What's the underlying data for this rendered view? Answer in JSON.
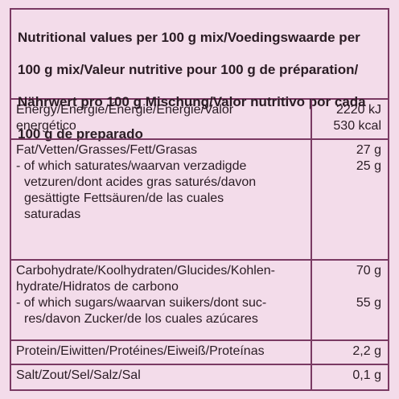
{
  "header": {
    "lines": [
      "Nutritional values per 100 g mix/Voedingswaarde per",
      "100 g mix/Valeur nutritive pour 100 g de préparation/",
      "Nährwert pro 100 g Mischung/Valor nutritivo por cada",
      "100 g de preparado"
    ]
  },
  "rows": {
    "energy": {
      "label": [
        "Energy/Energie/Énergie/Energie/Valor",
        "energético"
      ],
      "values": [
        "2220 kJ",
        "530 kcal"
      ]
    },
    "fat": {
      "label": [
        "Fat/Vetten/Grasses/Fett/Grasas"
      ],
      "value": "27 g",
      "sub_label": [
        "- of which saturates/waarvan verzadigde",
        "vetzuren/dont acides gras saturés/davon",
        "gesättigte Fettsäuren/de las cuales",
        "saturadas"
      ],
      "sub_value": "25 g"
    },
    "carbs": {
      "label": [
        "Carbohydrate/Koolhydraten/Glucides/Kohlen-",
        "hydrate/Hidratos de carbono"
      ],
      "value": "70 g",
      "sub_label": [
        "- of which sugars/waarvan suikers/dont suc-",
        "res/davon Zucker/de los cuales azúcares"
      ],
      "sub_value": "55 g"
    },
    "protein": {
      "label": "Protein/Eiwitten/Protéines/Eiweiß/Proteínas",
      "value": "2,2 g"
    },
    "salt": {
      "label": "Salt/Zout/Sel/Salz/Sal",
      "value": "0,1 g"
    }
  }
}
